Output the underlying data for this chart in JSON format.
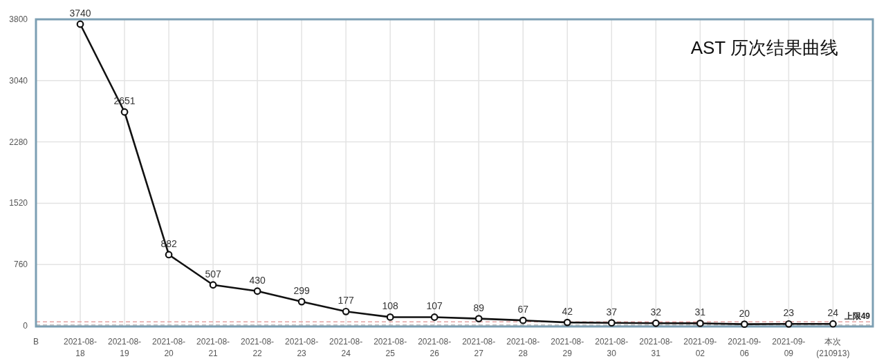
{
  "chart_data": {
    "type": "line",
    "title": "AST 历次结果曲线",
    "categories": [
      "B",
      "2021-08-18",
      "2021-08-19",
      "2021-08-20",
      "2021-08-21",
      "2021-08-22",
      "2021-08-23",
      "2021-08-24",
      "2021-08-25",
      "2021-08-26",
      "2021-08-27",
      "2021-08-28",
      "2021-08-29",
      "2021-08-30",
      "2021-08-31",
      "2021-09-02",
      "2021-09-06",
      "2021-09-09",
      "本次(210913)"
    ],
    "series": [
      {
        "color": "#111111",
        "values": [
          null,
          3740,
          2651,
          882,
          507,
          430,
          299,
          177,
          108,
          107,
          89,
          67,
          42,
          37,
          32,
          31,
          20,
          23,
          24
        ]
      }
    ],
    "ylim": [
      0,
      3800
    ],
    "yticks": [
      0,
      760,
      1520,
      2280,
      3040,
      3800
    ],
    "grid": true,
    "marker": "circle",
    "line_style": "solid",
    "data_labels": true,
    "ref_lines": [
      {
        "axis": "y",
        "value": 49,
        "label": "上限49",
        "color": "#e3a3a3",
        "line_style": "dashed"
      },
      {
        "axis": "y",
        "value": 10,
        "color": "#a8a8a8",
        "line_style": "dashed"
      }
    ]
  }
}
